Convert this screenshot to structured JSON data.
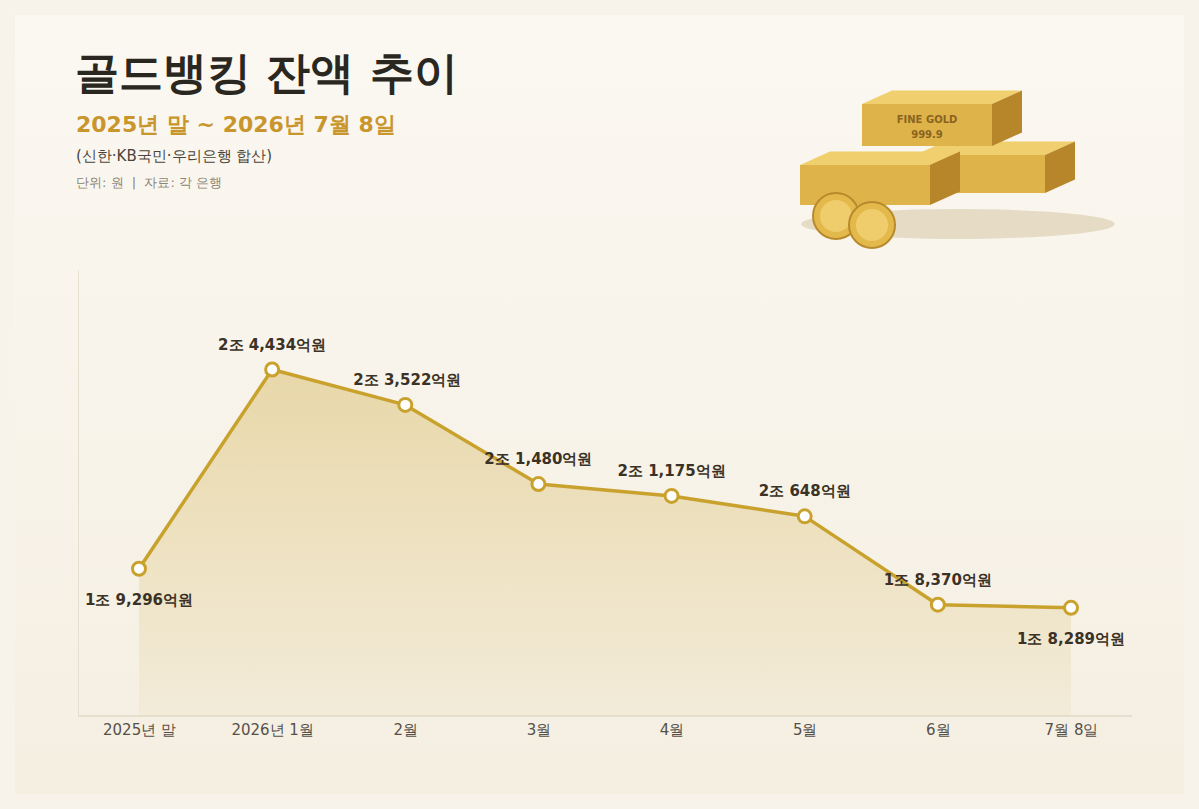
{
  "chart_data": {
    "type": "line",
    "title": "골드뱅킹 잔액 추이",
    "subtitle": "2025년 말 ~ 2026년 7월 8일",
    "note": "(신한·KB국민·우리은행 합산)",
    "source": "단위: 원  |  자료: 각 은행",
    "annotations": [
      "FINE GOLD",
      "999.9"
    ],
    "categories": [
      "2025년 말",
      "2026년 1월",
      "2월",
      "3월",
      "4월",
      "5월",
      "6월",
      "7월 8일"
    ],
    "values": [
      19296,
      24434,
      23522,
      21480,
      21175,
      20648,
      18370,
      18289
    ],
    "value_labels": [
      "1조 9,296억원",
      "2조 4,434억원",
      "2조 3,522억원",
      "2조 1,480억원",
      "2조 1,175억원",
      "2조 648억원",
      "1조 8,370억원",
      "1조 8,289억원"
    ],
    "color": "#c9a22e",
    "ylim": [
      15500,
      27000
    ],
    "grid": false,
    "data_labels": true,
    "tick_labels": "x",
    "marker": "circle",
    "line_style": "solid"
  }
}
